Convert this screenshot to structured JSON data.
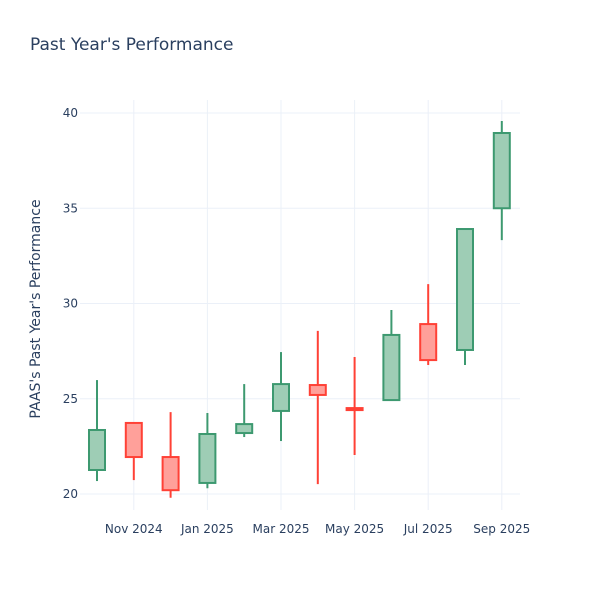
{
  "chart_data": {
    "type": "candlestick",
    "title": "Past Year's Performance",
    "ylabel": "PAAS's Past Year's Performance",
    "xlabel": "",
    "ylim": [
      19,
      40.7
    ],
    "yticks": [
      20,
      25,
      30,
      35,
      40
    ],
    "xtick_labels": [
      "Nov 2024",
      "Jan 2025",
      "Mar 2025",
      "May 2025",
      "Jul 2025",
      "Sep 2025"
    ],
    "grid": true,
    "colors": {
      "increasing": "#3d9970",
      "decreasing": "#ff4136",
      "increasing_fill": "#9ecdb5",
      "decreasing_fill": "#ffa09a"
    },
    "x": [
      "2024-10",
      "2024-11",
      "2024-12",
      "2025-01",
      "2025-02",
      "2025-03",
      "2025-04",
      "2025-05",
      "2025-06",
      "2025-07",
      "2025-08",
      "2025-09"
    ],
    "open": [
      21.26,
      23.73,
      21.94,
      20.58,
      23.2,
      24.36,
      25.72,
      24.51,
      24.93,
      28.92,
      27.56,
      35.0
    ],
    "high": [
      25.98,
      23.73,
      24.3,
      24.25,
      25.77,
      27.45,
      28.56,
      27.19,
      29.66,
      31.02,
      33.91,
      39.58
    ],
    "low": [
      20.68,
      20.73,
      19.8,
      20.3,
      22.99,
      22.78,
      20.52,
      22.05,
      24.93,
      26.77,
      26.77,
      33.33
    ],
    "close": [
      23.36,
      21.94,
      20.2,
      23.15,
      23.67,
      25.77,
      25.2,
      24.41,
      28.35,
      27.03,
      33.91,
      38.95
    ]
  }
}
